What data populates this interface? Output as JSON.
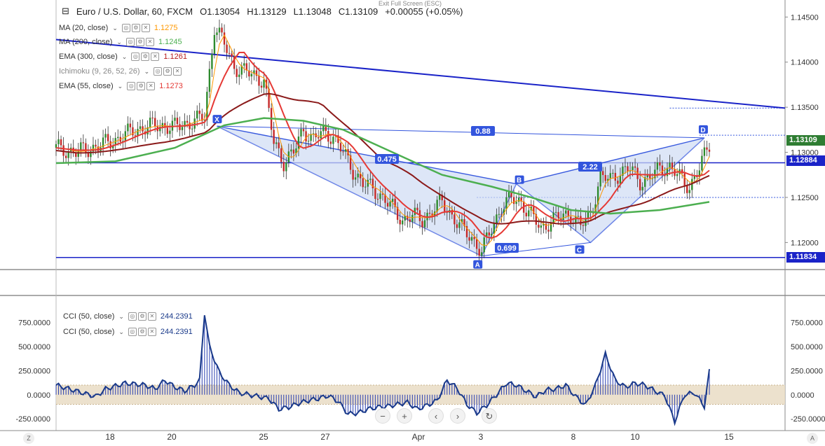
{
  "header": {
    "minimize_glyph": "⊟",
    "symbol": "Euro / U.S. Dollar, 60, FXCM",
    "open": "O1.13054",
    "high": "H1.13129",
    "low": "L1.13048",
    "close": "C1.13109",
    "change": "+0.00055 (+0.05%)",
    "exit_hint": "Exit Full Screen (ESC)"
  },
  "indicators": [
    {
      "label": "MA (20, close)",
      "value": "1.1275",
      "color": "#ff9800"
    },
    {
      "label": "MA (200, close)",
      "value": "1.1245",
      "color": "#4caf50"
    },
    {
      "label": "EMA (300, close)",
      "value": "1.1261",
      "color": "#b71c1c"
    },
    {
      "label": "Ichimoku (9, 26, 52, 26)",
      "value": "",
      "color": "#3366ff"
    },
    {
      "label": "EMA (55, close)",
      "value": "1.1273",
      "color": "#e53935"
    }
  ],
  "cci_indicators": [
    {
      "label": "CCI (50, close)",
      "value": "244.2391",
      "color": "#1a3a8a"
    },
    {
      "label": "CCI (50, close)",
      "value": "244.2391",
      "color": "#1a3a8a"
    }
  ],
  "price_axis": {
    "ticks": [
      "1.14500",
      "1.14000",
      "1.13500",
      "1.13000",
      "1.12500",
      "1.12000"
    ],
    "current_price": "1.13109",
    "current_color": "#2e7d32",
    "hline_upper": "1.12884",
    "hline_lower": "1.11834",
    "hline_color": "#1a23c8"
  },
  "cci_axis": {
    "ticks_right": [
      "750.0000",
      "500.0000",
      "250.0000",
      "0.0000",
      "-250.0000"
    ],
    "ticks_left": [
      "750.0000",
      "500.0000",
      "250.0000",
      "0.0000",
      "-250.0000"
    ]
  },
  "time_axis": {
    "labels": [
      "18",
      "20",
      "25",
      "27",
      "Apr",
      "3",
      "8",
      "10",
      "15"
    ]
  },
  "pattern": {
    "points": [
      "X",
      "A",
      "B",
      "C",
      "D"
    ],
    "ratios": [
      "0.88",
      "0.475",
      "2.22",
      "0.699"
    ],
    "color": "#3355dd"
  },
  "nav": {
    "zoom_out": "−",
    "zoom_in": "+",
    "scroll_left": "‹",
    "scroll_right": "›",
    "reset": "↻",
    "corner_left": "Z",
    "corner_right": "A"
  },
  "chart_data": [
    {
      "type": "candlestick",
      "title": "Euro / U.S. Dollar, 60, FXCM",
      "ylim": [
        1.117,
        1.1465
      ],
      "x_labels": [
        "18",
        "20",
        "25",
        "27",
        "Apr",
        "3",
        "8",
        "10",
        "15"
      ],
      "close_path": [
        [
          0,
          1.1305
        ],
        [
          4,
          1.13
        ],
        [
          8,
          1.1306
        ],
        [
          12,
          1.1314
        ],
        [
          16,
          1.1325
        ],
        [
          20,
          1.133
        ],
        [
          24,
          1.1328
        ],
        [
          28,
          1.1335
        ],
        [
          30,
          1.1339
        ],
        [
          32,
          1.144
        ],
        [
          34,
          1.142
        ],
        [
          36,
          1.1395
        ],
        [
          38,
          1.139
        ],
        [
          40,
          1.1385
        ],
        [
          42,
          1.138
        ],
        [
          44,
          1.131
        ],
        [
          46,
          1.129
        ],
        [
          48,
          1.13
        ],
        [
          50,
          1.1325
        ],
        [
          52,
          1.1315
        ],
        [
          54,
          1.1322
        ],
        [
          56,
          1.1318
        ],
        [
          58,
          1.13
        ],
        [
          60,
          1.128
        ],
        [
          62,
          1.1265
        ],
        [
          64,
          1.126
        ],
        [
          66,
          1.125
        ],
        [
          68,
          1.1238
        ],
        [
          70,
          1.1225
        ],
        [
          72,
          1.123
        ],
        [
          74,
          1.1225
        ],
        [
          76,
          1.1235
        ],
        [
          78,
          1.1245
        ],
        [
          80,
          1.123
        ],
        [
          82,
          1.1215
        ],
        [
          84,
          1.1205
        ],
        [
          86,
          1.119
        ],
        [
          88,
          1.1215
        ],
        [
          90,
          1.124
        ],
        [
          92,
          1.1248
        ],
        [
          94,
          1.1245
        ],
        [
          96,
          1.123
        ],
        [
          98,
          1.1215
        ],
        [
          100,
          1.1225
        ],
        [
          102,
          1.1228
        ],
        [
          104,
          1.1232
        ],
        [
          106,
          1.1218
        ],
        [
          108,
          1.1232
        ],
        [
          110,
          1.1272
        ],
        [
          112,
          1.127
        ],
        [
          114,
          1.1278
        ],
        [
          116,
          1.1282
        ],
        [
          118,
          1.1268
        ],
        [
          120,
          1.1272
        ],
        [
          122,
          1.1282
        ],
        [
          124,
          1.1284
        ],
        [
          126,
          1.1272
        ],
        [
          128,
          1.1262
        ],
        [
          130,
          1.1282
        ],
        [
          132,
          1.1309
        ]
      ],
      "series": [
        {
          "name": "MA (20, close)",
          "last": 1.1275
        },
        {
          "name": "MA (200, close)",
          "last": 1.1245
        },
        {
          "name": "EMA (300, close)",
          "last": 1.1261
        },
        {
          "name": "EMA (55, close)",
          "last": 1.1273
        }
      ],
      "horizontal_lines": [
        1.12884,
        1.11834,
        1.125
      ],
      "trendline": {
        "from": [
          0,
          1.1425
        ],
        "to": [
          132,
          1.1349
        ]
      },
      "harmonic_pattern": {
        "X": 1.1329,
        "A": 1.1185,
        "B": 1.1265,
        "C": 1.12,
        "D": 1.1316,
        "ratios": {
          "XD": 0.88,
          "XB": 0.475,
          "BD": 2.22,
          "AC": 0.699
        }
      }
    },
    {
      "type": "area",
      "title": "CCI (50, close)",
      "ylim": [
        -300,
        900
      ],
      "band": [
        -100,
        100
      ],
      "last": 244.2391,
      "points": [
        [
          0,
          100
        ],
        [
          4,
          40
        ],
        [
          8,
          -20
        ],
        [
          10,
          60
        ],
        [
          14,
          120
        ],
        [
          18,
          100
        ],
        [
          20,
          60
        ],
        [
          22,
          150
        ],
        [
          24,
          80
        ],
        [
          26,
          40
        ],
        [
          28,
          100
        ],
        [
          29,
          150
        ],
        [
          30,
          850
        ],
        [
          31,
          500
        ],
        [
          33,
          230
        ],
        [
          35,
          100
        ],
        [
          37,
          20
        ],
        [
          39,
          0
        ],
        [
          41,
          -20
        ],
        [
          43,
          -40
        ],
        [
          45,
          -150
        ],
        [
          47,
          -130
        ],
        [
          49,
          -90
        ],
        [
          51,
          -60
        ],
        [
          53,
          -40
        ],
        [
          55,
          -10
        ],
        [
          57,
          -70
        ],
        [
          59,
          -200
        ],
        [
          61,
          -190
        ],
        [
          63,
          -150
        ],
        [
          65,
          -130
        ],
        [
          67,
          -120
        ],
        [
          69,
          -100
        ],
        [
          71,
          -80
        ],
        [
          73,
          -150
        ],
        [
          75,
          -110
        ],
        [
          77,
          -60
        ],
        [
          79,
          150
        ],
        [
          81,
          70
        ],
        [
          83,
          -100
        ],
        [
          85,
          -190
        ],
        [
          87,
          -110
        ],
        [
          89,
          0
        ],
        [
          91,
          120
        ],
        [
          93,
          100
        ],
        [
          95,
          40
        ],
        [
          97,
          -20
        ],
        [
          99,
          50
        ],
        [
          101,
          60
        ],
        [
          103,
          100
        ],
        [
          105,
          -20
        ],
        [
          107,
          -110
        ],
        [
          109,
          100
        ],
        [
          111,
          420
        ],
        [
          113,
          150
        ],
        [
          115,
          80
        ],
        [
          117,
          120
        ],
        [
          119,
          100
        ],
        [
          121,
          40
        ],
        [
          123,
          -10
        ],
        [
          125,
          -280
        ],
        [
          127,
          0
        ],
        [
          129,
          20
        ],
        [
          131,
          -120
        ],
        [
          132,
          244
        ]
      ]
    }
  ]
}
